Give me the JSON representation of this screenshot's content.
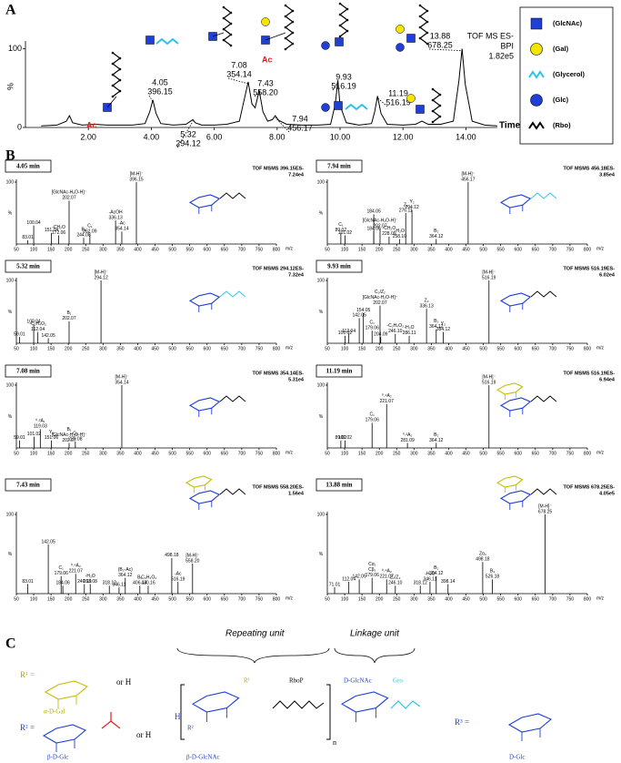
{
  "figure": {
    "panel_labels": [
      "A",
      "B",
      "C"
    ]
  },
  "chart_data": [
    {
      "type": "line",
      "header": [
        "TOF MS ES-",
        "BPI",
        "1.82e5"
      ],
      "x": [
        0.5,
        1.0,
        1.3,
        1.4,
        1.5,
        1.8,
        2.2,
        2.6,
        3.0,
        3.4,
        3.8,
        3.95,
        4.05,
        4.15,
        4.3,
        4.7,
        5.1,
        5.25,
        5.32,
        5.4,
        5.6,
        6.0,
        6.4,
        6.8,
        6.95,
        7.08,
        7.2,
        7.3,
        7.43,
        7.55,
        7.7,
        7.85,
        7.94,
        8.05,
        8.3,
        8.8,
        9.3,
        9.7,
        9.85,
        9.93,
        10.0,
        10.2,
        10.6,
        11.0,
        11.1,
        11.19,
        11.3,
        11.5,
        12.0,
        12.4,
        12.6,
        12.8,
        13.2,
        13.6,
        13.78,
        13.88,
        13.98,
        14.2,
        14.6,
        15.0
      ],
      "series": [
        {
          "color": "#000000",
          "values": [
            2,
            3,
            8,
            15,
            6,
            3,
            4,
            3,
            3,
            3,
            5,
            20,
            35,
            18,
            5,
            3,
            4,
            8,
            10,
            6,
            3,
            3,
            4,
            8,
            35,
            58,
            30,
            25,
            47,
            20,
            8,
            10,
            15,
            9,
            4,
            3,
            3,
            4,
            30,
            60,
            28,
            6,
            3,
            5,
            20,
            40,
            18,
            4,
            3,
            4,
            8,
            4,
            4,
            8,
            60,
            100,
            55,
            8,
            3,
            2
          ]
        }
      ],
      "xlim": [
        0,
        15
      ],
      "ylim": [
        0,
        110
      ],
      "xticks": [
        {
          "value": 2,
          "label": "2.00"
        },
        {
          "value": 4,
          "label": "4.00"
        },
        {
          "value": 6,
          "label": "6.00"
        },
        {
          "value": 8,
          "label": "8.00"
        },
        {
          "value": 10,
          "label": "10.00"
        },
        {
          "value": 12,
          "label": "12.00"
        },
        {
          "value": 14,
          "label": "14.00"
        }
      ],
      "yticks": [
        0,
        100
      ],
      "xlabel": "Time",
      "ylabel": "%",
      "peak_labels": [
        {
          "time": 4.05,
          "mz": 396.15
        },
        {
          "time": 5.32,
          "mz": 294.12
        },
        {
          "time": 7.08,
          "mz": 354.14
        },
        {
          "time": 7.43,
          "mz": {
            "value": 558.2,
            "label": "558.20"
          }
        },
        {
          "time": 7.94,
          "mz": 456.17
        },
        {
          "time": 9.93,
          "mz": 516.19
        },
        {
          "time": 11.19,
          "mz": 516.19
        },
        {
          "time": 13.88,
          "mz": 678.25
        }
      ],
      "ac_label": "Ac"
    },
    {
      "type": "spectrum",
      "title": "4.05 min",
      "header": "TOF MSMS 396.15ES-",
      "intensity": "7.24e4",
      "color": "#000000",
      "x": [
        83.01,
        100.04,
        151.04,
        172.06,
        202.07,
        244.08,
        262.09,
        336.13,
        354.14,
        396.15
      ],
      "values": [
        6,
        30,
        18,
        14,
        70,
        10,
        16,
        38,
        20,
        100
      ],
      "ions": [
        null,
        null,
        null,
        [
          "-CH₂O"
        ],
        [
          "[GlcNAc-H₂O-H]⁻"
        ],
        [
          "B₁"
        ],
        [
          "C₁"
        ],
        [
          "-AcOH"
        ],
        [
          "-Ac"
        ],
        [
          "[M-H]⁻"
        ]
      ],
      "xlim": [
        50,
        800
      ],
      "ylim": [
        0,
        100
      ],
      "xticks": [
        50,
        100,
        150,
        200,
        250,
        300,
        350,
        400,
        450,
        500,
        550,
        600,
        650,
        700,
        750,
        800
      ],
      "yticks": [
        100
      ],
      "xlabel": "m/z",
      "ylabel": "%"
    },
    {
      "type": "spectrum",
      "title": "7.94 min",
      "header": "TOF MSMS 456.18ES-",
      "intensity": "3.85e4",
      "color": "#000000",
      "x": [
        89.02,
        101.02,
        184.05,
        184.06,
        202.07,
        228.09,
        {
          "value": 258.1,
          "label": "258.10"
        },
        276.11,
        294.12,
        364.12,
        456.17
      ],
      "values": [
        18,
        14,
        48,
        20,
        25,
        12,
        8,
        50,
        55,
        8,
        100
      ],
      "ions": [
        [
          "C₁"
        ],
        null,
        null,
        null,
        [
          "[GlcNAc-H₂O-H]⁻"
        ],
        [
          "-CH₂O"
        ],
        [
          "-H₂O"
        ],
        [
          "Z₁"
        ],
        [
          "Y₂"
        ],
        [
          "B₂"
        ],
        [
          "[M-H]⁻"
        ]
      ],
      "xlim": [
        50,
        800
      ],
      "ylim": [
        0,
        100
      ],
      "xticks": [
        50,
        100,
        150,
        200,
        250,
        300,
        350,
        400,
        450,
        500,
        550,
        600,
        650,
        700,
        750,
        800
      ],
      "yticks": [
        100
      ],
      "xlabel": "m/z",
      "ylabel": "%"
    },
    {
      "type": "spectrum",
      "title": "5.32 min",
      "header": "TOF MSMS 294.12ES-",
      "intensity": "7.32e4",
      "color": "#000000",
      "x": [
        59.01,
        100.04,
        112.04,
        142.05,
        202.07,
        294.12
      ],
      "values": [
        10,
        30,
        18,
        8,
        35,
        100
      ],
      "ions": [
        null,
        null,
        [
          "-C₂H₄O₂"
        ],
        null,
        [
          "B₁"
        ],
        [
          "[M-H]⁻"
        ]
      ],
      "xlim": [
        50,
        800
      ],
      "ylim": [
        0,
        100
      ],
      "xticks": [
        50,
        100,
        150,
        200,
        250,
        300,
        350,
        400,
        450,
        500,
        550,
        600,
        650,
        700,
        750,
        800
      ],
      "yticks": [
        100
      ],
      "xlabel": "m/z",
      "ylabel": "%"
    },
    {
      "type": "spectrum",
      "title": "9.93 min",
      "header": "TOF MSMS 516.19ES-",
      "intensity": "6.02e4",
      "color": "#000000",
      "x": [
        101.02,
        112.04,
        142.05,
        154.05,
        179.06,
        202.07,
        204.09,
        {
          "value": 246.1,
          "label": "246.10"
        },
        286.11,
        336.13,
        364.12,
        384.12,
        516.19
      ],
      "values": [
        12,
        15,
        40,
        48,
        20,
        60,
        10,
        15,
        12,
        55,
        22,
        18,
        100
      ],
      "ions": [
        null,
        null,
        null,
        null,
        [
          "C₁"
        ],
        [
          "C₂/Z₂",
          "[GlcNAc-H₂O-H]⁻"
        ],
        null,
        [
          "-C₂H₄O₂"
        ],
        [
          "-H₂O"
        ],
        [
          "Z₂"
        ],
        [
          "B₂"
        ],
        [
          "Y₂"
        ],
        [
          "[M-H]⁻"
        ]
      ],
      "xlim": [
        50,
        800
      ],
      "ylim": [
        0,
        100
      ],
      "xticks": [
        50,
        100,
        150,
        200,
        250,
        300,
        350,
        400,
        450,
        500,
        550,
        600,
        650,
        700,
        750,
        800
      ],
      "yticks": [
        100
      ],
      "xlabel": "m/z",
      "ylabel": "%"
    },
    {
      "type": "spectrum",
      "title": "7.08 min",
      "header": "TOF MSMS 354.14ES-",
      "intensity": "5.31e4",
      "color": "#000000",
      "x": [
        59.01,
        101.02,
        119.03,
        151.06,
        202.07,
        220.08,
        354.14
      ],
      "values": [
        12,
        18,
        30,
        12,
        8,
        10,
        100
      ],
      "ions": [
        null,
        null,
        [
          "⁰˒²A₁"
        ],
        [
          "Y₁"
        ],
        [
          "B₁",
          "[GlcNAc-H₂O-H]⁻"
        ],
        [
          "C₁"
        ],
        [
          "[M-H]⁻"
        ]
      ],
      "xlim": [
        50,
        800
      ],
      "ylim": [
        0,
        100
      ],
      "xticks": [
        50,
        100,
        150,
        200,
        250,
        300,
        350,
        400,
        450,
        500,
        550,
        600,
        650,
        700,
        750,
        800
      ],
      "yticks": [
        100
      ],
      "xlabel": "m/z",
      "ylabel": "%"
    },
    {
      "type": "spectrum",
      "title": "11.19 min",
      "header": "TOF MSMS 516.19ES-",
      "intensity": "6.94e4",
      "color": "#000000",
      "x": [
        89.02,
        101.02,
        179.06,
        221.07,
        281.09,
        364.12,
        516.19
      ],
      "values": [
        12,
        12,
        40,
        70,
        8,
        8,
        100
      ],
      "ions": [
        null,
        null,
        [
          "C₁"
        ],
        [
          "⁰˒⁴A₂"
        ],
        [
          "⁰˒²A₂"
        ],
        [
          "B₂"
        ],
        [
          "[M-H]⁻"
        ]
      ],
      "xlim": [
        50,
        800
      ],
      "ylim": [
        0,
        100
      ],
      "xticks": [
        50,
        100,
        150,
        200,
        250,
        300,
        350,
        400,
        450,
        500,
        550,
        600,
        650,
        700,
        750,
        800
      ],
      "yticks": [
        100
      ],
      "xlabel": "m/z",
      "ylabel": "%"
    },
    {
      "type": "spectrum",
      "title": "7.43 min",
      "header": "TOF MSMS 558.20ES-",
      "intensity": "1.56e4",
      "color": "#000000",
      "x": [
        83.01,
        142.05,
        179.06,
        184.06,
        221.07,
        {
          "value": 246.1,
          "label": "246.10"
        },
        263.08,
        318.12,
        346.11,
        364.12,
        406.14,
        430.16,
        498.18,
        516.19,
        {
          "value": 558.2,
          "label": "558.20"
        }
      ],
      "values": [
        12,
        62,
        22,
        10,
        25,
        12,
        12,
        10,
        8,
        20,
        10,
        10,
        45,
        15,
        38
      ],
      "ions": [
        null,
        null,
        [
          "C₁"
        ],
        null,
        [
          "⁰˒⁴A₂"
        ],
        null,
        [
          "-H₂O"
        ],
        null,
        null,
        [
          "(B₂-Ac)"
        ],
        [
          "B₂"
        ],
        [
          "-C₂H₄O₂"
        ],
        null,
        [
          "-Ac"
        ],
        [
          "[M-H]⁻"
        ]
      ],
      "xlim": [
        50,
        800
      ],
      "ylim": [
        0,
        100
      ],
      "xticks": [
        50,
        100,
        150,
        200,
        250,
        300,
        350,
        400,
        450,
        500,
        550,
        600,
        650,
        700,
        750,
        800
      ],
      "yticks": [
        100
      ],
      "xlabel": "m/z",
      "ylabel": "%"
    },
    {
      "type": "spectrum",
      "title": "13.88 min",
      "header": "TOF MSMS 678.25ES-",
      "intensity": "4.05e5",
      "color": "#000000",
      "x": [
        71.01,
        112.04,
        142.05,
        179.06,
        221.07,
        {
          "value": 246.1,
          "label": "246.10"
        },
        318.12,
        346.11,
        364.12,
        398.14,
        498.18,
        526.18,
        678.25
      ],
      "values": [
        8,
        15,
        18,
        20,
        18,
        10,
        10,
        15,
        22,
        12,
        40,
        18,
        100
      ],
      "ions": [
        null,
        null,
        null,
        [
          "Cα₁",
          "Cβ₁"
        ],
        [
          "⁰˒⁴A₂"
        ],
        [
          "Z₂/Z₃"
        ],
        null,
        [
          "-H₂O"
        ],
        [
          "B₂"
        ],
        null,
        [
          "Zα₂"
        ],
        [
          "B₃"
        ],
        [
          "[M-H]⁻"
        ]
      ],
      "xlim": [
        50,
        800
      ],
      "ylim": [
        0,
        100
      ],
      "xticks": [
        50,
        100,
        150,
        200,
        250,
        300,
        350,
        400,
        450,
        500,
        550,
        600,
        650,
        700,
        750,
        800
      ],
      "yticks": [
        100
      ],
      "xlabel": "m/z",
      "ylabel": "%"
    }
  ],
  "symbol_key": {
    "items": [
      {
        "label": "(GlcNAc)",
        "color": "#1f3fd6",
        "symbol": "square"
      },
      {
        "label": "(Gal)",
        "color": "#f2e600",
        "symbol": "circle"
      },
      {
        "label": "(Glycerol)",
        "color": "#29c5e6",
        "symbol": "zigzag"
      },
      {
        "label": "(Glc)",
        "color": "#1f3fd6",
        "symbol": "circle"
      },
      {
        "label": "(Rbo)",
        "color": "#000000",
        "symbol": "zigzag"
      }
    ]
  },
  "structure": {
    "repeating_unit": "Repeating unit",
    "linkage_unit": "Linkage unit",
    "r1": "R¹ =",
    "r1_name": "α-D-Gal",
    "r2": "R² =",
    "r2_name": "β-D-Glc",
    "r3": "R³ =",
    "r3_name": "D-Glc",
    "or_h": "or H",
    "ribitol": "RboP",
    "glcnac": "D-GlcNAc",
    "glycerol": "Gro",
    "backbone": "β-D-GlcNAc",
    "repeat": "n",
    "terminus": "H",
    "r_sub1": "R¹",
    "r_sub2": "R²"
  }
}
